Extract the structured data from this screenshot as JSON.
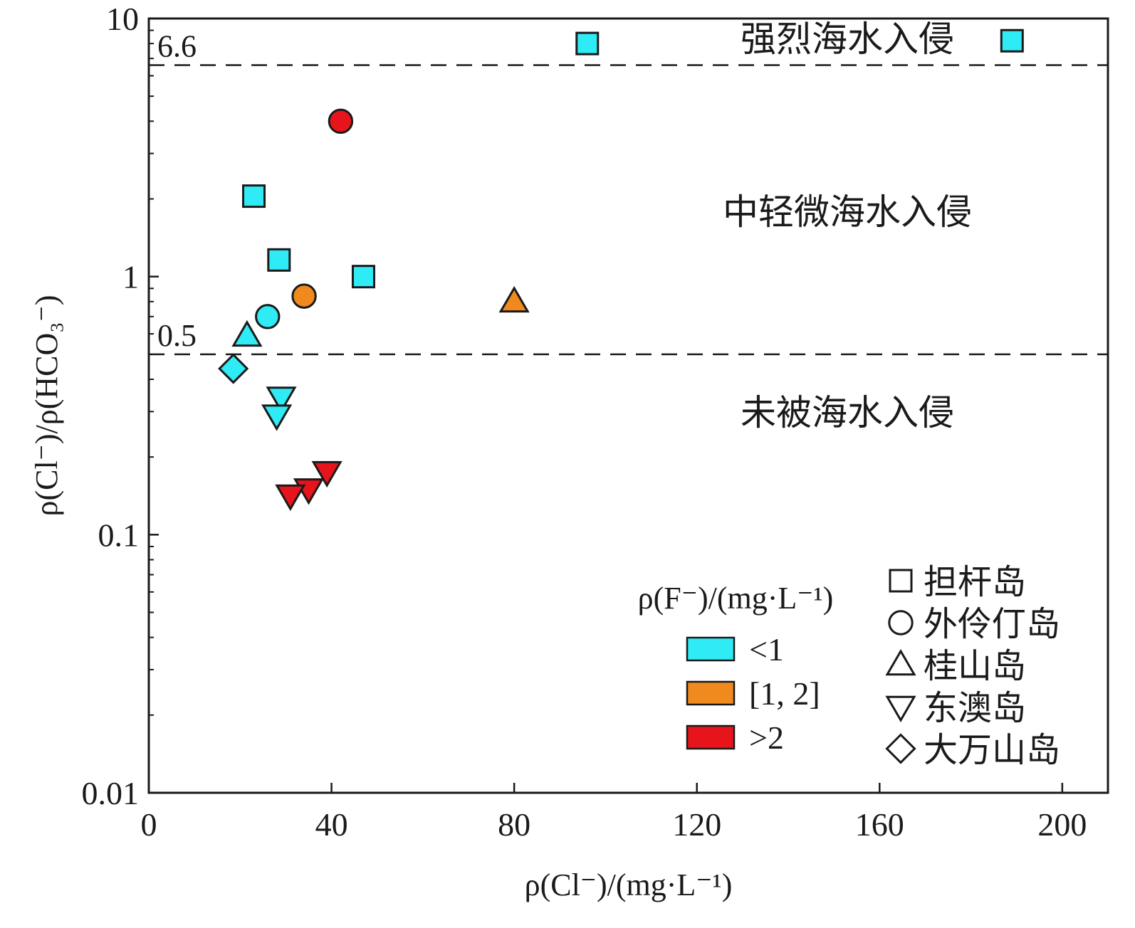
{
  "chart_data": {
    "type": "scatter",
    "xlabel": "ρ(Cl⁻)/(mg·L⁻¹)",
    "ylabel": "ρ(Cl⁻)/ρ(HCO₃⁻)",
    "xlim": [
      0,
      210
    ],
    "ylim": [
      0.01,
      10
    ],
    "y_scale": "log",
    "x_ticks": [
      "0",
      "40",
      "80",
      "120",
      "160",
      "200"
    ],
    "x_tick_values": [
      0,
      40,
      80,
      120,
      160,
      200
    ],
    "y_ticks": [
      "0.01",
      "0.1",
      "1",
      "10"
    ],
    "y_tick_values": [
      0.01,
      0.1,
      1,
      10
    ],
    "grid": false,
    "thresholds": [
      {
        "value": 6.6,
        "label": "6.6"
      },
      {
        "value": 0.5,
        "label": "0.5"
      }
    ],
    "regions": [
      {
        "label": "强烈海水入侵"
      },
      {
        "label": "中轻微海水入侵"
      },
      {
        "label": "未被海水入侵"
      }
    ],
    "color_legend": {
      "title": "ρ(F⁻)/(mg·L⁻¹)",
      "items": [
        {
          "label": "<1",
          "color": "#2EEBF5"
        },
        {
          "label": "[1, 2]",
          "color": "#F08A1E"
        },
        {
          "label": ">2",
          "color": "#E8141B"
        }
      ]
    },
    "shape_legend": {
      "items": [
        {
          "label": "担杆岛",
          "shape": "square"
        },
        {
          "label": "外伶仃岛",
          "shape": "circle"
        },
        {
          "label": "桂山岛",
          "shape": "triangle-up"
        },
        {
          "label": "东澳岛",
          "shape": "triangle-down"
        },
        {
          "label": "大万山岛",
          "shape": "diamond"
        }
      ]
    },
    "points": [
      {
        "x": 96,
        "y": 8.0,
        "shape": "square",
        "f_class": "<1"
      },
      {
        "x": 189,
        "y": 8.2,
        "shape": "square",
        "f_class": "<1"
      },
      {
        "x": 23,
        "y": 2.05,
        "shape": "square",
        "f_class": "<1"
      },
      {
        "x": 28.5,
        "y": 1.16,
        "shape": "square",
        "f_class": "<1"
      },
      {
        "x": 47,
        "y": 1.0,
        "shape": "square",
        "f_class": "<1"
      },
      {
        "x": 42,
        "y": 4.0,
        "shape": "circle",
        "f_class": ">2"
      },
      {
        "x": 34,
        "y": 0.84,
        "shape": "circle",
        "f_class": "[1, 2]"
      },
      {
        "x": 26,
        "y": 0.7,
        "shape": "circle",
        "f_class": "<1"
      },
      {
        "x": 80,
        "y": 0.8,
        "shape": "triangle-up",
        "f_class": "[1, 2]"
      },
      {
        "x": 21.5,
        "y": 0.59,
        "shape": "triangle-up",
        "f_class": "<1"
      },
      {
        "x": 29,
        "y": 0.34,
        "shape": "triangle-down",
        "f_class": "<1"
      },
      {
        "x": 28,
        "y": 0.29,
        "shape": "triangle-down",
        "f_class": "<1"
      },
      {
        "x": 39,
        "y": 0.175,
        "shape": "triangle-down",
        "f_class": ">2"
      },
      {
        "x": 35,
        "y": 0.15,
        "shape": "triangle-down",
        "f_class": ">2"
      },
      {
        "x": 31,
        "y": 0.142,
        "shape": "triangle-down",
        "f_class": ">2"
      },
      {
        "x": 18.5,
        "y": 0.44,
        "shape": "diamond",
        "f_class": "<1"
      }
    ]
  }
}
